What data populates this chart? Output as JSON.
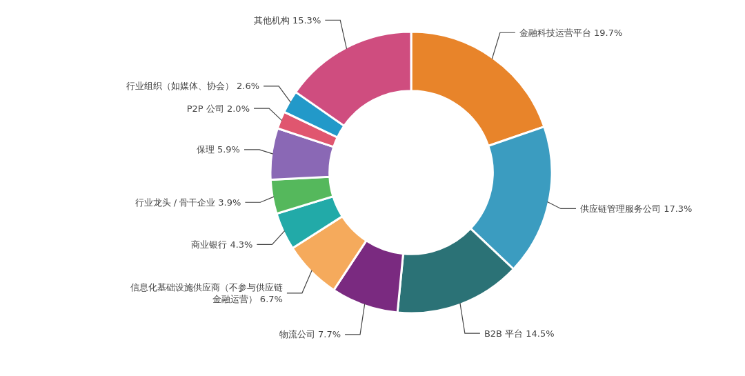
{
  "chart_data": {
    "type": "donut",
    "categories": [
      "金融科技运营平台",
      "供应链管理服务公司",
      "B2B 平台",
      "物流公司",
      "信息化基础设施供应商（不参与供应链金融运营）",
      "商业银行",
      "行业龙头 / 骨干企业",
      "保理",
      "P2P 公司",
      "行业组织（如媒体、协会）",
      "其他机构"
    ],
    "values": [
      19.7,
      17.3,
      14.5,
      7.7,
      6.7,
      4.3,
      3.9,
      5.9,
      2.0,
      2.6,
      15.3
    ],
    "value_labels": [
      "19.7%",
      "17.3%",
      "14.5%",
      "7.7%",
      "6.7%",
      "4.3%",
      "3.9%",
      "5.9%",
      "2.0%",
      "2.6%",
      "15.3%"
    ],
    "colors": [
      "#e8842a",
      "#3b9cc0",
      "#2b7276",
      "#7a2a80",
      "#f5aa5c",
      "#22aaa8",
      "#55b85c",
      "#8a68b5",
      "#e0566f",
      "#2299c9",
      "#cf4d7f"
    ]
  }
}
